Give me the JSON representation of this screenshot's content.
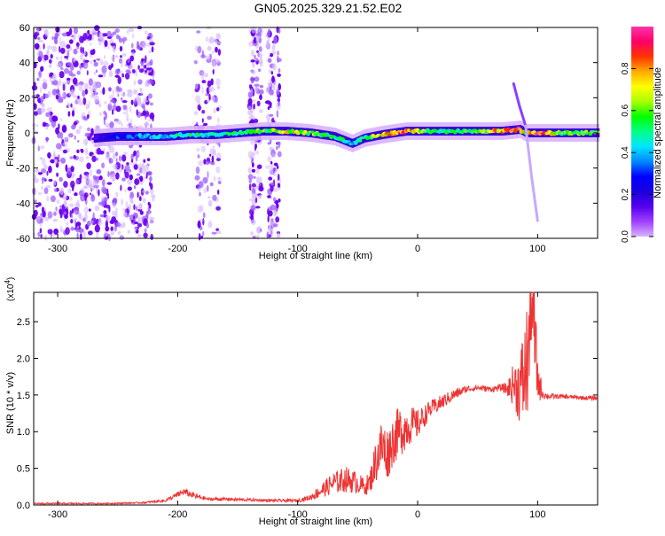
{
  "title": "GN05.2025.329.21.52.E02",
  "colors": {
    "signal": "#ee3333",
    "noise": "#6a00ee",
    "axis": "#000000"
  },
  "chart_data": [
    {
      "type": "heatmap",
      "xlabel": "Height of straight line (km)",
      "ylabel": "Frequency (Hz)",
      "xlim": [
        -320,
        150
      ],
      "ylim": [
        -60,
        60
      ],
      "xticks": [
        -300,
        -200,
        -100,
        0,
        100
      ],
      "yticks": [
        -60,
        -40,
        -20,
        0,
        20,
        40,
        60
      ],
      "colorbar": {
        "label": "Normalized spectral amplitude",
        "range": [
          0,
          1
        ],
        "ticks": [
          0.0,
          0.2,
          0.4,
          0.6,
          0.8
        ],
        "colormap": [
          "#d9b3ff",
          "#a040ff",
          "#5500ee",
          "#1a00dd",
          "#0000ff",
          "#0088ff",
          "#00e5ff",
          "#00ff88",
          "#00ff00",
          "#aaff00",
          "#ffff00",
          "#ffaa00",
          "#ff3300",
          "#ff0066",
          "#ff33aa"
        ]
      },
      "ridge": {
        "x": [
          -270,
          -250,
          -230,
          -210,
          -190,
          -170,
          -150,
          -130,
          -110,
          -90,
          -70,
          -55,
          -45,
          -30,
          -10,
          10,
          30,
          50,
          70,
          85,
          90,
          100,
          120,
          150
        ],
        "y": [
          -3,
          -2,
          -2,
          -2,
          -1,
          -1,
          0,
          1,
          1,
          0,
          -2,
          -6,
          -3,
          -1,
          1,
          1,
          1,
          1,
          1,
          2,
          0,
          0,
          0,
          0
        ],
        "amplitude": [
          0.15,
          0.3,
          0.4,
          0.45,
          0.55,
          0.5,
          0.55,
          0.6,
          0.75,
          0.65,
          0.55,
          0.45,
          0.55,
          0.75,
          0.9,
          0.55,
          0.55,
          0.6,
          0.85,
          0.9,
          0.7,
          1.0,
          0.6,
          0.6
        ]
      },
      "noise_bands_x": [
        [
          -320,
          -220
        ],
        [
          -185,
          -165
        ],
        [
          -140,
          -130
        ],
        [
          -125,
          -115
        ]
      ],
      "spike": {
        "x": [
          80,
          85,
          90,
          95,
          100
        ],
        "y": [
          28,
          15,
          4,
          -25,
          -50
        ]
      }
    },
    {
      "type": "line",
      "xlabel": "Height of straight line (km)",
      "ylabel": "SNR (10 * v/v)",
      "y_multiplier": "(x10",
      "y_multiplier_exp": "4",
      "y_multiplier_close": ")",
      "xlim": [
        -320,
        150
      ],
      "ylim": [
        0,
        2.9
      ],
      "xticks": [
        -300,
        -200,
        -100,
        0,
        100
      ],
      "yticks": [
        0.0,
        0.5,
        1.0,
        1.5,
        2.0,
        2.5
      ],
      "series": [
        {
          "x": [
            -320,
            -300,
            -260,
            -230,
            -210,
            -195,
            -185,
            -175,
            -160,
            -140,
            -120,
            -100,
            -90,
            -80,
            -70,
            -60,
            -50,
            -45,
            -40,
            -35,
            -30,
            -25,
            -20,
            -15,
            -10,
            -5,
            0,
            10,
            20,
            30,
            40,
            50,
            60,
            70,
            75,
            80,
            85,
            90,
            93,
            95,
            97,
            100,
            105,
            110,
            120,
            130,
            140,
            150
          ],
          "y": [
            0.02,
            0.02,
            0.02,
            0.03,
            0.06,
            0.18,
            0.12,
            0.08,
            0.08,
            0.07,
            0.06,
            0.06,
            0.1,
            0.2,
            0.3,
            0.35,
            0.3,
            0.25,
            0.3,
            0.6,
            0.8,
            0.7,
            0.9,
            1.0,
            1.05,
            1.1,
            1.1,
            1.3,
            1.4,
            1.5,
            1.58,
            1.6,
            1.58,
            1.6,
            1.58,
            1.65,
            1.6,
            1.8,
            2.2,
            2.9,
            2.4,
            1.7,
            1.5,
            1.48,
            1.48,
            1.47,
            1.46,
            1.46
          ],
          "noise_amplitude": [
            0.01,
            0.01,
            0.01,
            0.01,
            0.02,
            0.05,
            0.04,
            0.02,
            0.02,
            0.02,
            0.02,
            0.02,
            0.04,
            0.1,
            0.15,
            0.18,
            0.15,
            0.12,
            0.15,
            0.3,
            0.4,
            0.35,
            0.35,
            0.35,
            0.3,
            0.25,
            0.2,
            0.12,
            0.1,
            0.08,
            0.05,
            0.04,
            0.04,
            0.05,
            0.1,
            0.3,
            0.5,
            0.8,
            0.9,
            0.6,
            0.9,
            0.3,
            0.05,
            0.04,
            0.03,
            0.03,
            0.03,
            0.03
          ]
        }
      ]
    }
  ]
}
